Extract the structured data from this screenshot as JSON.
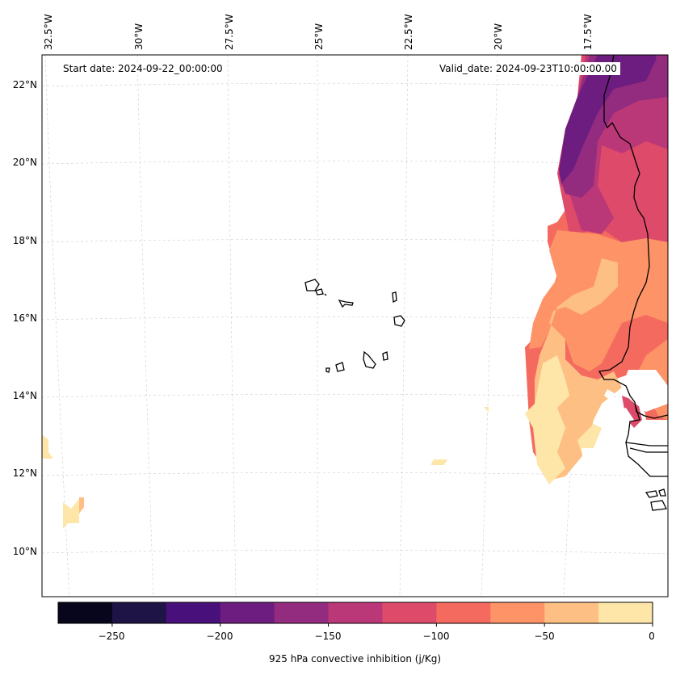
{
  "map": {
    "annotations": {
      "start_date": "Start date: 2024-09-22_00:00:00",
      "valid_date": "Valid_date: 2024-09-23T10:00:00.00"
    },
    "longitude_labels": [
      "32.5°W",
      "30°W",
      "27.5°W",
      "25°W",
      "22.5°W",
      "20°W",
      "17.5°W"
    ],
    "latitude_labels": [
      "22°N",
      "20°N",
      "18°N",
      "16°N",
      "14°N",
      "12°N",
      "10°N"
    ],
    "extent": {
      "lon_min": -33.0,
      "lon_max": -15.5,
      "lat_min": 9.0,
      "lat_max": 22.7
    },
    "field": "925 hPa convective inhibition",
    "units": "j/Kg",
    "features": [
      "West African coastline (Mauritania, Senegal, Gambia, Guinea-Bissau)",
      "Cape Verde islands"
    ]
  },
  "colorbar": {
    "label": "925 hPa convective inhibition (j/Kg)",
    "ticks": [
      "−250",
      "−200",
      "−150",
      "−100",
      "−50",
      "0"
    ],
    "tick_values": [
      -250,
      -200,
      -150,
      -100,
      -50,
      0
    ],
    "range": [
      -275,
      0
    ],
    "levels": [
      -275,
      -250,
      -225,
      -200,
      -175,
      -150,
      -125,
      -100,
      -75,
      -50,
      -25,
      0
    ],
    "colors": [
      "#07061c",
      "#1f1446",
      "#48107a",
      "#6d1d80",
      "#932b7f",
      "#bb3878",
      "#de4a6a",
      "#f46a5f",
      "#fd9367",
      "#febf84",
      "#fde6a8"
    ]
  }
}
